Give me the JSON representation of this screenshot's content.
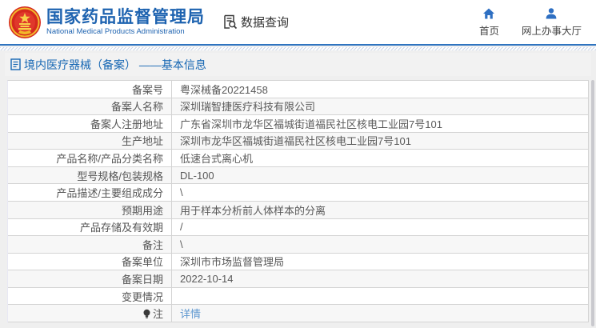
{
  "header": {
    "agency_name_zh": "国家药品监督管理局",
    "agency_name_en": "National Medical Products Administration",
    "data_query_label": "数据查询",
    "nav": [
      {
        "label": "首页",
        "icon": "home-icon"
      },
      {
        "label": "网上办事大厅",
        "icon": "user-icon"
      }
    ]
  },
  "page": {
    "title": "境内医疗器械（备案） ——基本信息"
  },
  "table": {
    "rows": [
      {
        "label": "备案号",
        "value": "粤深械备20221458"
      },
      {
        "label": "备案人名称",
        "value": "深圳瑞智捷医疗科技有限公司"
      },
      {
        "label": "备案人注册地址",
        "value": "广东省深圳市龙华区福城街道福民社区核电工业园7号101"
      },
      {
        "label": "生产地址",
        "value": "深圳市龙华区福城街道福民社区核电工业园7号101"
      },
      {
        "label": "产品名称/产品分类名称",
        "value": "低速台式离心机"
      },
      {
        "label": "型号规格/包装规格",
        "value": "DL-100"
      },
      {
        "label": "产品描述/主要组成成分",
        "value": "\\"
      },
      {
        "label": "预期用途",
        "value": "用于样本分析前人体样本的分离"
      },
      {
        "label": "产品存储及有效期",
        "value": "/"
      },
      {
        "label": "备注",
        "value": "\\"
      },
      {
        "label": "备案单位",
        "value": "深圳市市场监督管理局"
      },
      {
        "label": "备案日期",
        "value": "2022-10-14"
      },
      {
        "label": "变更情况",
        "value": ""
      },
      {
        "label": "注",
        "value": "详情",
        "is_link": true,
        "label_icon": "bulb-icon"
      }
    ]
  },
  "colors": {
    "brand_blue": "#1e63b0",
    "title_blue": "#1566b3",
    "link_blue": "#5e97d0",
    "header_rule_blue": "#2f74c0",
    "row_stripe": "#f7f7f7",
    "border_gray": "#d3d3d3",
    "emblem_red": "#d5281e",
    "emblem_gold": "#f2b72c"
  }
}
